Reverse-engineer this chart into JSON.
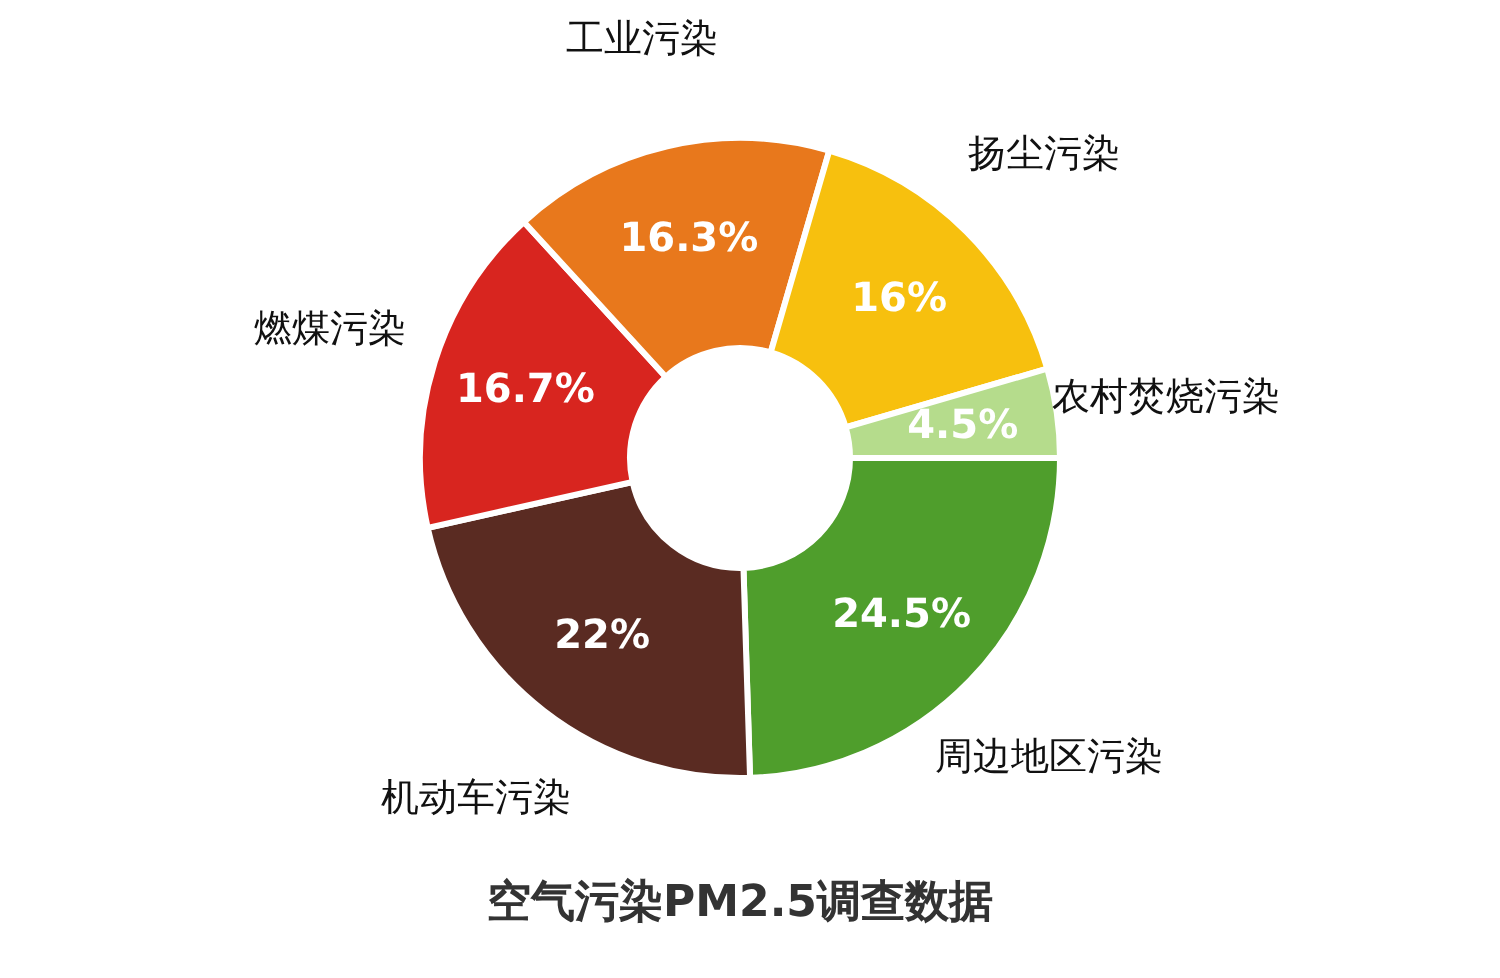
{
  "chart_data": {
    "type": "donut",
    "title": "空气污染PM2.5调查数据",
    "categories": [
      "周边地区污染",
      "机动车污染",
      "燃煤污染",
      "工业污染",
      "扬尘污染",
      "农村焚烧污染"
    ],
    "values": [
      24.5,
      22,
      16.7,
      16.3,
      16,
      4.5
    ],
    "colors": [
      "#4f9e2c",
      "#5a2b22",
      "#d8251f",
      "#e8781c",
      "#f7c00e",
      "#b5dc8c"
    ],
    "value_labels": [
      "24.5%",
      "22%",
      "16.7%",
      "16.3%",
      "16%",
      "4.5%"
    ],
    "legend": false
  }
}
